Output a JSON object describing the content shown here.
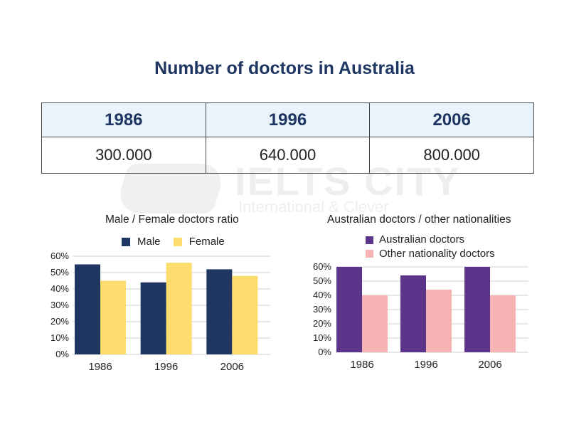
{
  "title": "Number of doctors in Australia",
  "table": {
    "headers": [
      "1986",
      "1996",
      "2006"
    ],
    "values": [
      "300.000",
      "640.000",
      "800.000"
    ]
  },
  "watermark": {
    "line1": "IELTS CITY",
    "line2": "International & Clever"
  },
  "colors": {
    "male": "#1e3661",
    "female": "#fddc6e",
    "australian": "#5b3589",
    "other": "#f8b4b4",
    "header_bg": "#e9f3fb",
    "title": "#1e3661"
  },
  "chart_data": [
    {
      "type": "bar",
      "title": "Male / Female doctors ratio",
      "categories": [
        "1986",
        "1996",
        "2006"
      ],
      "series": [
        {
          "name": "Male",
          "values": [
            55,
            44,
            52
          ]
        },
        {
          "name": "Female",
          "values": [
            45,
            56,
            48
          ]
        }
      ],
      "yticks": [
        "0%",
        "10%",
        "20%",
        "30%",
        "40%",
        "50%",
        "60%"
      ],
      "ylim": [
        0,
        60
      ],
      "grid": true,
      "legend": "top"
    },
    {
      "type": "bar",
      "title": "Australian doctors / other nationalities",
      "categories": [
        "1986",
        "1996",
        "2006"
      ],
      "series": [
        {
          "name": "Australian doctors",
          "values": [
            60,
            54,
            60
          ]
        },
        {
          "name": "Other nationality doctors",
          "values": [
            40,
            44,
            40
          ]
        }
      ],
      "yticks": [
        "0%",
        "10%",
        "20%",
        "30%",
        "40%",
        "50%",
        "60%"
      ],
      "ylim": [
        0,
        60
      ],
      "grid": true,
      "legend": "top-left"
    }
  ]
}
